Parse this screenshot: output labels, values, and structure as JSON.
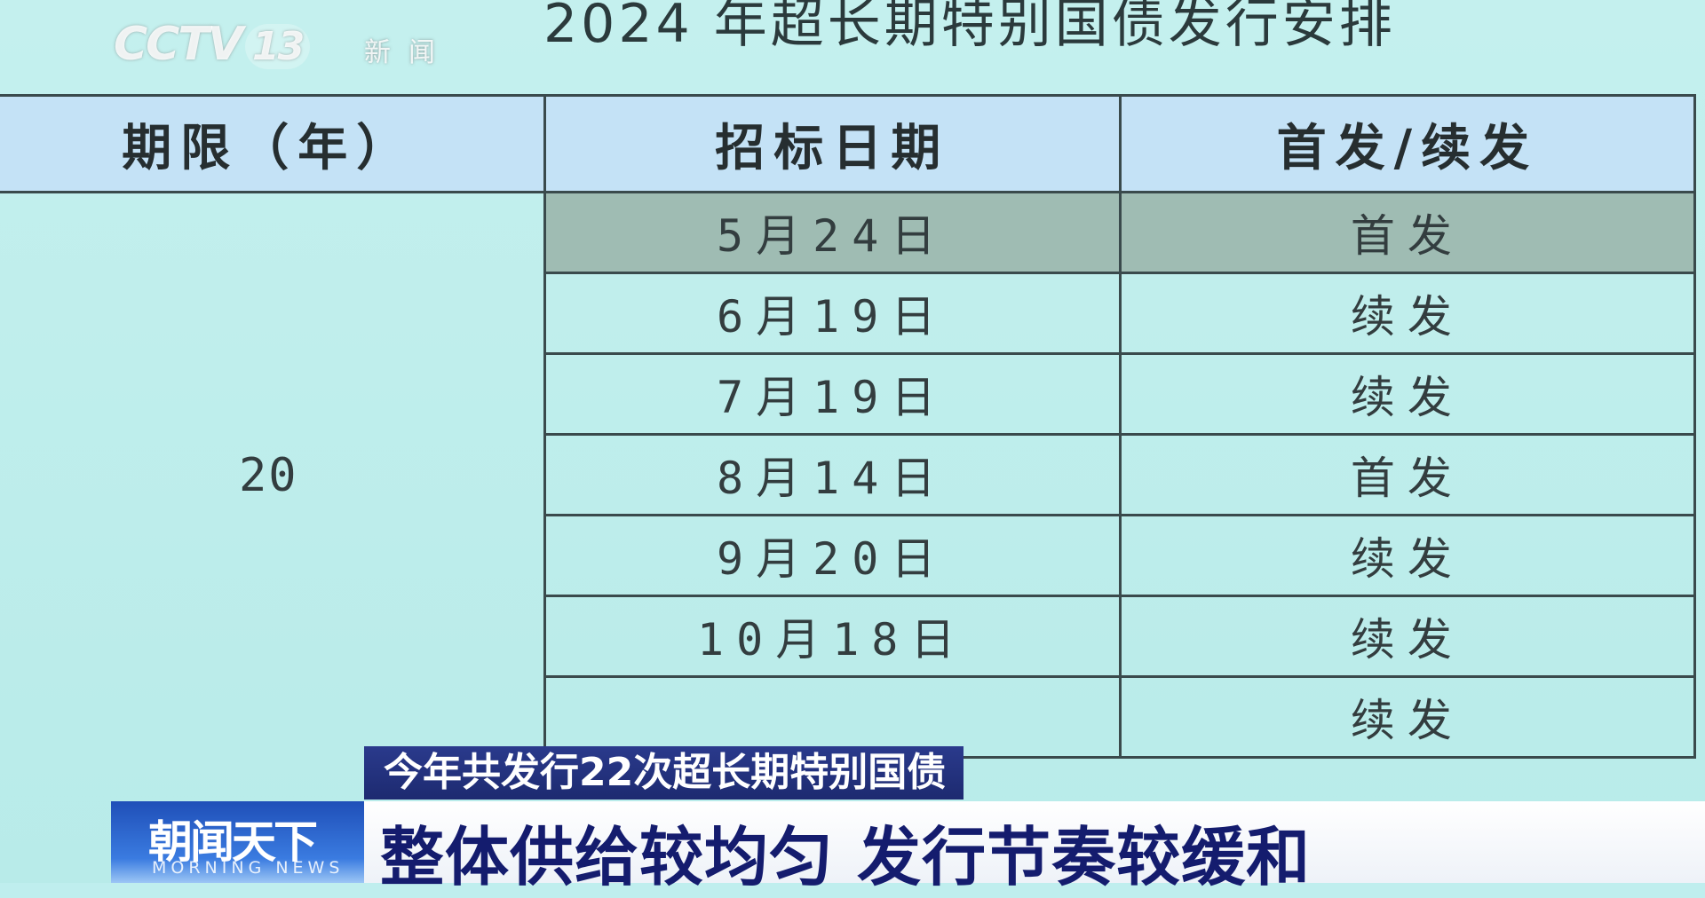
{
  "document": {
    "title": "2024 年超长期特别国债发行安排",
    "table": {
      "headers": [
        "期限（年）",
        "招标日期",
        "首发/续发"
      ],
      "term": "20",
      "rows": [
        {
          "date": "5月24日",
          "type": "首发",
          "highlighted": true
        },
        {
          "date": "6月19日",
          "type": "续发"
        },
        {
          "date": "7月19日",
          "type": "续发"
        },
        {
          "date": "8月14日",
          "type": "首发"
        },
        {
          "date": "9月20日",
          "type": "续发"
        },
        {
          "date": "10月18日",
          "type": "续发"
        },
        {
          "date": "",
          "type": "续发"
        }
      ]
    },
    "highlight_color": "#9fbcb3",
    "header_color": "#c4e2f6",
    "background_color": "#bfeeee"
  },
  "channel_logo": {
    "name": "CCTV",
    "number": "13",
    "subtitle": "新闻"
  },
  "lower_third": {
    "subtitle": "今年共发行22次超长期特别国债",
    "program_name": "朝闻天下",
    "program_name_en": "MORNING NEWS",
    "headline": "整体供给较均匀 发行节奏较缓和",
    "headline_color": "#141c6e"
  }
}
